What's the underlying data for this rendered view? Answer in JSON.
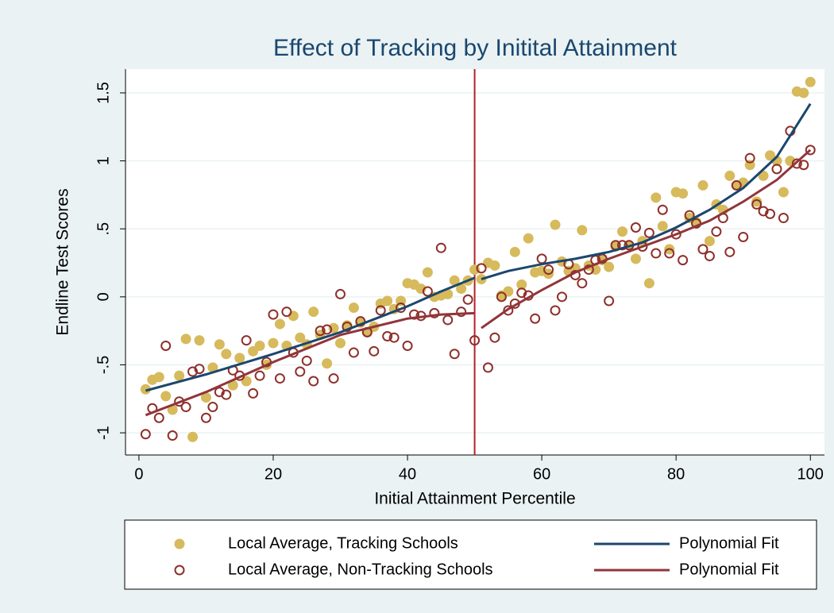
{
  "chart_data": {
    "type": "scatter",
    "title": "Effect of Tracking by Initital Attainment",
    "x_label": "Initial Attainment Percentile",
    "y_label": "Endline Test Scores",
    "xlim": [
      -2,
      102.1
    ],
    "ylim": [
      -1.163,
      1.675
    ],
    "xticks": [
      0,
      20,
      40,
      60,
      80,
      100
    ],
    "yticks": [
      -1,
      {
        "value": -0.5,
        "label": "-.5"
      },
      0,
      {
        "value": 0.5,
        "label": ".5"
      },
      1,
      1.5
    ],
    "grid": true,
    "xline": 50,
    "xline_color": "#b0222b",
    "legend": "bottom",
    "x": [
      1,
      2,
      3,
      4,
      5,
      6,
      7,
      8,
      9,
      10,
      11,
      12,
      13,
      14,
      15,
      16,
      17,
      18,
      19,
      20,
      21,
      22,
      23,
      24,
      25,
      26,
      27,
      28,
      29,
      30,
      31,
      32,
      33,
      34,
      35,
      36,
      37,
      38,
      39,
      40,
      41,
      42,
      43,
      44,
      45,
      46,
      47,
      48,
      49,
      50,
      51,
      52,
      53,
      54,
      55,
      56,
      57,
      58,
      59,
      60,
      61,
      62,
      63,
      64,
      65,
      66,
      67,
      68,
      69,
      70,
      71,
      72,
      73,
      74,
      75,
      76,
      77,
      78,
      79,
      80,
      81,
      82,
      83,
      84,
      85,
      86,
      87,
      88,
      89,
      90,
      91,
      92,
      93,
      94,
      95,
      96,
      97,
      98,
      99,
      100
    ],
    "series": [
      {
        "name": "Local Average, Tracking Schools",
        "color": "#d6ba5c",
        "marker": "filled",
        "values": [
          -0.68,
          -0.61,
          -0.59,
          -0.73,
          -0.83,
          -0.58,
          -0.31,
          -1.03,
          -0.32,
          -0.74,
          -0.52,
          -0.35,
          -0.42,
          -0.65,
          -0.45,
          -0.62,
          -0.4,
          -0.36,
          -0.5,
          -0.34,
          -0.2,
          -0.36,
          -0.14,
          -0.3,
          -0.35,
          -0.11,
          -0.28,
          -0.49,
          -0.23,
          -0.34,
          -0.21,
          -0.08,
          -0.19,
          -0.26,
          -0.22,
          -0.05,
          -0.03,
          -0.09,
          -0.03,
          0.1,
          0.09,
          0.06,
          0.18,
          0.0,
          0.01,
          0.02,
          0.12,
          0.06,
          0.12,
          0.2,
          0.13,
          0.25,
          0.23,
          0.01,
          0.04,
          0.33,
          0.09,
          0.43,
          0.18,
          0.19,
          0.17,
          0.53,
          0.26,
          0.19,
          0.21,
          0.49,
          0.23,
          0.2,
          0.27,
          0.22,
          0.37,
          0.48,
          0.38,
          0.28,
          0.41,
          0.1,
          0.73,
          0.52,
          0.35,
          0.77,
          0.76,
          0.58,
          0.55,
          0.82,
          0.41,
          0.68,
          0.64,
          0.89,
          0.82,
          0.84,
          0.97,
          0.7,
          0.89,
          1.04,
          1.0,
          0.77,
          1.0,
          1.51,
          1.5,
          1.58
        ]
      },
      {
        "name": "Local Average, Non-Tracking Schools",
        "color": "#8e2f2a",
        "marker": "hollow",
        "values": [
          -1.01,
          -0.82,
          -0.89,
          -0.36,
          -1.02,
          -0.77,
          -0.81,
          -0.55,
          -0.53,
          -0.89,
          -0.81,
          -0.7,
          -0.72,
          -0.54,
          -0.58,
          -0.32,
          -0.71,
          -0.58,
          -0.48,
          -0.13,
          -0.6,
          -0.11,
          -0.41,
          -0.55,
          -0.47,
          -0.62,
          -0.25,
          -0.24,
          -0.6,
          0.02,
          -0.22,
          -0.41,
          -0.18,
          -0.26,
          -0.4,
          -0.1,
          -0.29,
          -0.3,
          -0.08,
          -0.36,
          -0.13,
          -0.14,
          0.04,
          -0.12,
          0.36,
          -0.17,
          -0.42,
          -0.11,
          -0.02,
          -0.32,
          0.21,
          -0.52,
          -0.3,
          0.0,
          -0.1,
          -0.05,
          0.03,
          0.01,
          -0.16,
          0.28,
          0.2,
          -0.1,
          0.0,
          0.24,
          0.16,
          0.1,
          0.2,
          0.27,
          0.28,
          -0.03,
          0.38,
          0.38,
          0.38,
          0.51,
          0.37,
          0.47,
          0.32,
          0.64,
          0.32,
          0.46,
          0.27,
          0.6,
          0.54,
          0.35,
          0.3,
          0.48,
          0.58,
          0.33,
          0.82,
          0.44,
          1.02,
          0.68,
          0.63,
          0.61,
          0.94,
          0.58,
          1.22,
          0.98,
          0.97,
          1.08
        ]
      },
      {
        "name": "Polynomial Fit",
        "color": "#1a476f",
        "marker": "line",
        "x": [
          1,
          10,
          20,
          30,
          40,
          45,
          50,
          null,
          51,
          55,
          60,
          65,
          70,
          75,
          80,
          85,
          90,
          95,
          100
        ],
        "values": [
          -0.69,
          -0.57,
          -0.42,
          -0.26,
          -0.07,
          0.04,
          0.14,
          null,
          0.13,
          0.19,
          0.24,
          0.28,
          0.33,
          0.4,
          0.51,
          0.64,
          0.8,
          1.03,
          1.42
        ]
      },
      {
        "name": "Polynomial Fit",
        "color": "#90353b",
        "marker": "line",
        "x": [
          1,
          10,
          20,
          30,
          40,
          45,
          50,
          null,
          51,
          55,
          60,
          65,
          70,
          75,
          80,
          85,
          90,
          95,
          100
        ],
        "values": [
          -0.87,
          -0.7,
          -0.48,
          -0.28,
          -0.16,
          -0.13,
          -0.12,
          null,
          -0.23,
          -0.09,
          0.05,
          0.18,
          0.28,
          0.37,
          0.46,
          0.56,
          0.7,
          0.86,
          1.08
        ]
      }
    ]
  }
}
